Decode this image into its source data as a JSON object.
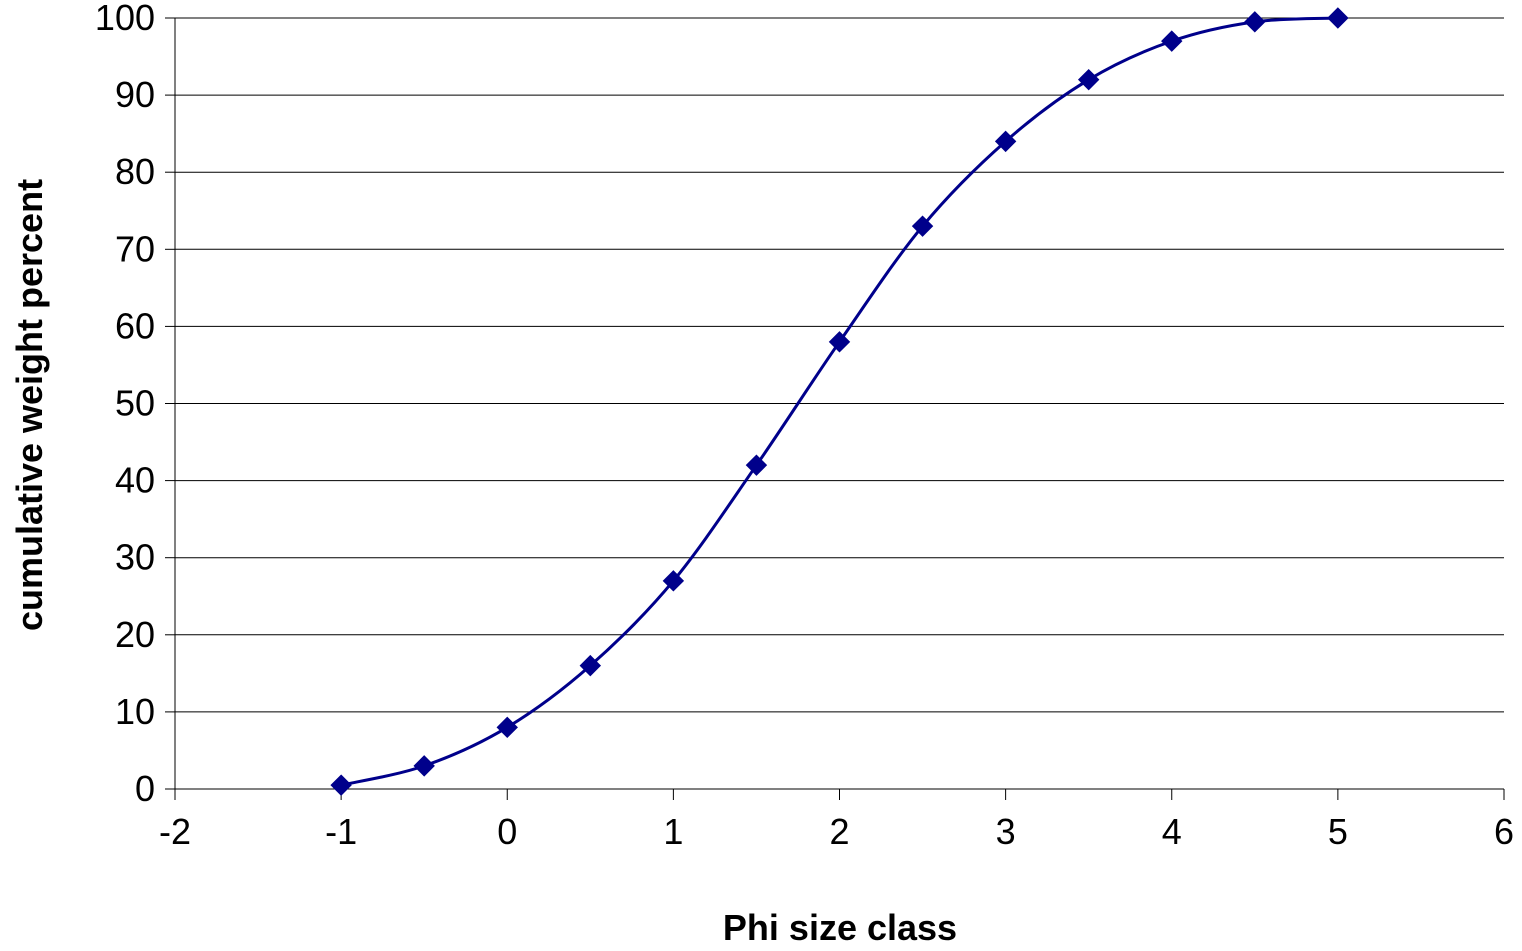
{
  "chart_data": {
    "type": "line",
    "title": "",
    "xlabel": "Phi size class",
    "ylabel": "cumulative weight percent",
    "xlim": [
      -2,
      6
    ],
    "ylim": [
      0,
      100
    ],
    "x_ticks": [
      -2,
      -1,
      0,
      1,
      2,
      3,
      4,
      5,
      6
    ],
    "y_ticks": [
      0,
      10,
      20,
      30,
      40,
      50,
      60,
      70,
      80,
      90,
      100
    ],
    "grid": "horizontal major gridlines",
    "legend": "none",
    "marker": "diamond",
    "smoothed": true,
    "series": [
      {
        "x": [
          -1,
          -0.5,
          0,
          0.5,
          1,
          1.5,
          2,
          2.5,
          3,
          3.5,
          4,
          4.5,
          5
        ],
        "values": [
          0.5,
          3,
          8,
          16,
          27,
          42,
          58,
          73,
          84,
          92,
          97,
          99.5,
          100
        ],
        "color": "#00008B"
      }
    ]
  }
}
